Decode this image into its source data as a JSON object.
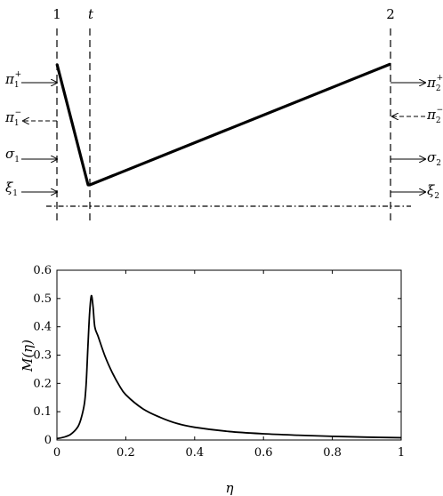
{
  "diagram": {
    "column_labels": {
      "left": "1",
      "middle": "t",
      "right": "2"
    },
    "left_arrows": [
      {
        "base": "π",
        "sub": "1",
        "sup": "+",
        "direction": "in",
        "style": "solid"
      },
      {
        "base": "π",
        "sub": "1",
        "sup": "−",
        "direction": "out",
        "style": "dashed"
      },
      {
        "base": "σ",
        "sub": "1",
        "sup": "",
        "direction": "in",
        "style": "solid"
      },
      {
        "base": "ξ",
        "sub": "1",
        "sup": "",
        "direction": "in",
        "style": "solid"
      }
    ],
    "right_arrows": [
      {
        "base": "π",
        "sub": "2",
        "sup": "+",
        "direction": "out",
        "style": "solid"
      },
      {
        "base": "π",
        "sub": "2",
        "sup": "−",
        "direction": "in",
        "style": "dashed"
      },
      {
        "base": "σ",
        "sub": "2",
        "sup": "",
        "direction": "out",
        "style": "solid"
      },
      {
        "base": "ξ",
        "sub": "2",
        "sup": "",
        "direction": "out",
        "style": "solid"
      }
    ]
  },
  "chart_data": {
    "type": "line",
    "xlabel": "η",
    "ylabel": "M(η)",
    "xlim": [
      0,
      1
    ],
    "ylim": [
      0,
      0.6
    ],
    "xticks": [
      "0",
      "0.2",
      "0.4",
      "0.6",
      "0.8",
      "1"
    ],
    "yticks": [
      "0",
      "0.1",
      "0.2",
      "0.3",
      "0.4",
      "0.5",
      "0.6"
    ],
    "grid": false,
    "series": [
      {
        "x": [
          0,
          0.02,
          0.04,
          0.06,
          0.07,
          0.08,
          0.085,
          0.09,
          0.095,
          0.1,
          0.105,
          0.11,
          0.12,
          0.14,
          0.16,
          0.18,
          0.2,
          0.25,
          0.3,
          0.35,
          0.4,
          0.5,
          0.6,
          0.7,
          0.8,
          0.9,
          1.0
        ],
        "y": [
          0.005,
          0.01,
          0.02,
          0.045,
          0.075,
          0.13,
          0.2,
          0.33,
          0.45,
          0.51,
          0.47,
          0.4,
          0.365,
          0.295,
          0.24,
          0.195,
          0.16,
          0.11,
          0.08,
          0.058,
          0.045,
          0.03,
          0.022,
          0.017,
          0.013,
          0.01,
          0.008
        ]
      }
    ]
  }
}
